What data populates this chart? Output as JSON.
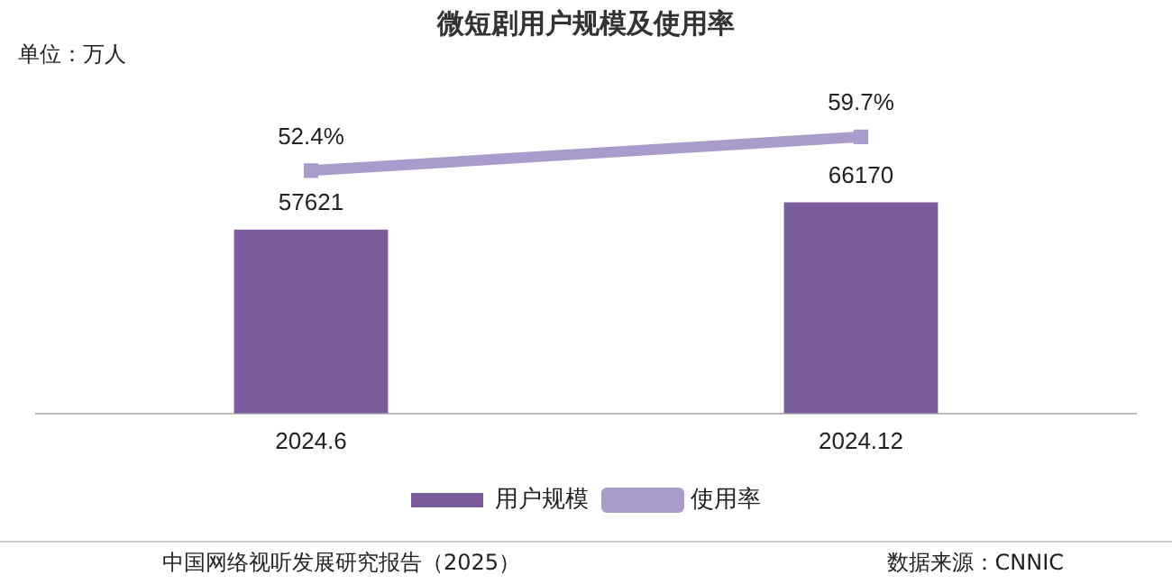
{
  "chart_data": {
    "type": "bar",
    "title": "微短剧用户规模及使用率",
    "tick_labels": "x",
    "ylim": [
      0,
      90000
    ],
    "y2lim": [
      0,
      62
    ],
    "categories": [
      "2024.6",
      "2024.12"
    ],
    "series": [
      {
        "name": "用户规模",
        "color": "#7b5c9c",
        "values": [
          57621,
          66170
        ],
        "value_labels": [
          "57621",
          "66170"
        ]
      },
      {
        "name": "使用率",
        "type": "line",
        "axis": "y2",
        "color": "#a99ccc",
        "values": [
          52.4,
          59.7
        ],
        "value_labels": [
          "52.4%",
          "59.7%"
        ]
      }
    ],
    "marker": "square",
    "legend": "bottom",
    "grid": false,
    "annotations": [
      "单位：万人",
      "中国网络视听发展研究报告（2025）",
      "数据来源：CNNIC"
    ]
  }
}
